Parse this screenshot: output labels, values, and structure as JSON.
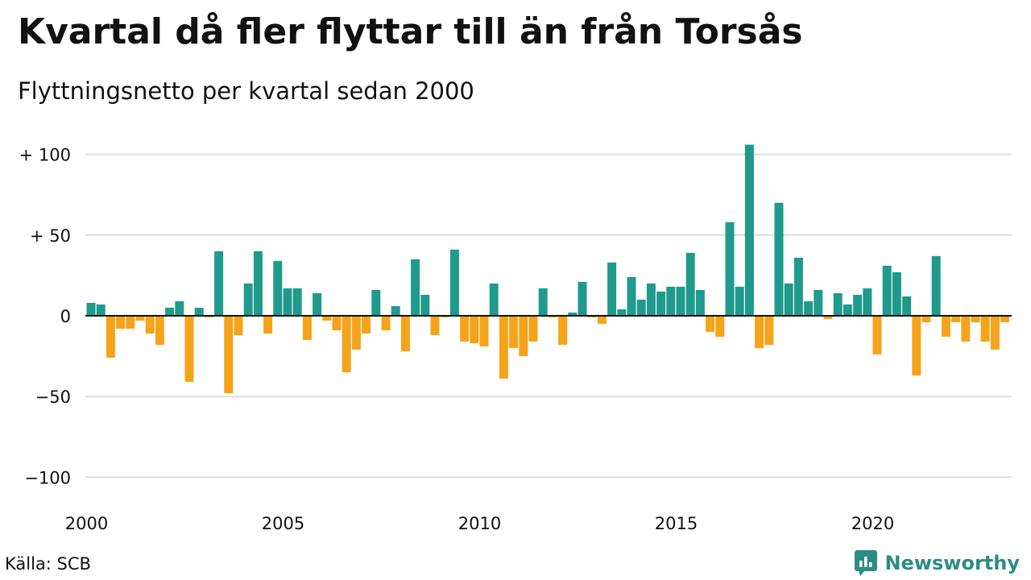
{
  "title": "Kvartal då fler flyttar till än från Torsås",
  "subtitle": "Flyttningsnetto per kvartal sedan 2000",
  "source": "Källa: SCB",
  "brand": {
    "name": "Newsworthy",
    "icon": "newsworthy-logo-icon",
    "color": "#2c8c86"
  },
  "colors": {
    "positive": "#1f9a8c",
    "negative": "#f5a31a",
    "grid": "#dddddd",
    "zero_line": "#111111"
  },
  "chart_data": {
    "type": "bar",
    "x_ticks": [
      "2000",
      "2005",
      "2010",
      "2015",
      "2020"
    ],
    "y_ticks": [
      {
        "value": 100,
        "label": "+ 100"
      },
      {
        "value": 50,
        "label": "+  50"
      },
      {
        "value": 0,
        "label": "0"
      },
      {
        "value": -50,
        "label": "−50"
      },
      {
        "value": -100,
        "label": "−100"
      }
    ],
    "ylim": [
      -105,
      106
    ],
    "grid": true,
    "categories": [
      "2000 Q1",
      "2000 Q2",
      "2000 Q3",
      "2000 Q4",
      "2001 Q1",
      "2001 Q2",
      "2001 Q3",
      "2001 Q4",
      "2002 Q1",
      "2002 Q2",
      "2002 Q3",
      "2002 Q4",
      "2003 Q1",
      "2003 Q2",
      "2003 Q3",
      "2003 Q4",
      "2004 Q1",
      "2004 Q2",
      "2004 Q3",
      "2004 Q4",
      "2005 Q1",
      "2005 Q2",
      "2005 Q3",
      "2005 Q4",
      "2006 Q1",
      "2006 Q2",
      "2006 Q3",
      "2006 Q4",
      "2007 Q1",
      "2007 Q2",
      "2007 Q3",
      "2007 Q4",
      "2008 Q1",
      "2008 Q2",
      "2008 Q3",
      "2008 Q4",
      "2009 Q1",
      "2009 Q2",
      "2009 Q3",
      "2009 Q4",
      "2010 Q1",
      "2010 Q2",
      "2010 Q3",
      "2010 Q4",
      "2011 Q1",
      "2011 Q2",
      "2011 Q3",
      "2011 Q4",
      "2012 Q1",
      "2012 Q2",
      "2012 Q3",
      "2012 Q4",
      "2013 Q1",
      "2013 Q2",
      "2013 Q3",
      "2013 Q4",
      "2014 Q1",
      "2014 Q2",
      "2014 Q3",
      "2014 Q4",
      "2015 Q1",
      "2015 Q2",
      "2015 Q3",
      "2015 Q4",
      "2016 Q1",
      "2016 Q2",
      "2016 Q3",
      "2016 Q4",
      "2017 Q1",
      "2017 Q2",
      "2017 Q3",
      "2017 Q4",
      "2018 Q1",
      "2018 Q2",
      "2018 Q3",
      "2018 Q4",
      "2019 Q1",
      "2019 Q2",
      "2019 Q3",
      "2019 Q4",
      "2020 Q1",
      "2020 Q2",
      "2020 Q3",
      "2020 Q4",
      "2021 Q1",
      "2021 Q2",
      "2021 Q3",
      "2021 Q4",
      "2022 Q1",
      "2022 Q2",
      "2022 Q3",
      "2022 Q4",
      "2023 Q1",
      "2023 Q2",
      "2023 Q3",
      "2023 Q4"
    ],
    "values": [
      8,
      7,
      -26,
      -8,
      -8,
      -3,
      -11,
      -18,
      5,
      9,
      -41,
      5,
      -1,
      40,
      -48,
      -12,
      20,
      40,
      -11,
      34,
      17,
      17,
      -15,
      14,
      -3,
      -9,
      -35,
      -21,
      -11,
      16,
      -9,
      6,
      -22,
      35,
      13,
      -12,
      -1,
      41,
      -16,
      -17,
      -19,
      20,
      -39,
      -20,
      -25,
      -16,
      17,
      -1,
      -18,
      2,
      21,
      -1,
      -5,
      33,
      4,
      24,
      10,
      20,
      15,
      18,
      18,
      39,
      16,
      -10,
      -13,
      58,
      18,
      106,
      -20,
      -18,
      70,
      20,
      36,
      9,
      16,
      -2,
      14,
      7,
      13,
      17,
      -24,
      31,
      27,
      12,
      -37,
      -4,
      37,
      -13,
      -4,
      -16,
      -4,
      -16,
      -21,
      -4,
      0,
      0
    ]
  }
}
